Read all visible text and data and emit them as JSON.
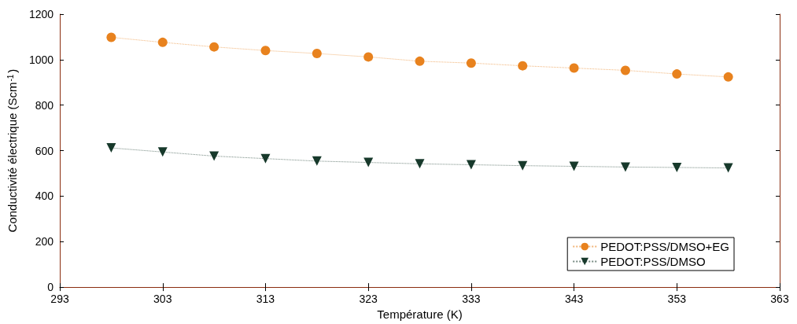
{
  "chart_data": {
    "type": "line",
    "xlabel": "Température (K)",
    "ylabel": "Conductivité électrique (Scm$^{-1}$)",
    "x": [
      298,
      303,
      308,
      313,
      318,
      323,
      328,
      333,
      338,
      343,
      348,
      353,
      358
    ],
    "series": [
      {
        "name": "PEDOT:PSS/DMSO+EG",
        "color": "#e8821e",
        "marker": "circle",
        "values": [
          1098,
          1076,
          1056,
          1040,
          1027,
          1012,
          993,
          985,
          973,
          963,
          953,
          937,
          924
        ]
      },
      {
        "name": "PEDOT:PSS/DMSO",
        "color": "#17392b",
        "marker": "triangle",
        "values": [
          612,
          594,
          576,
          565,
          554,
          548,
          542,
          538,
          534,
          531,
          528,
          526,
          524
        ]
      }
    ],
    "xlim": [
      293,
      363
    ],
    "xticks": [
      293,
      303,
      313,
      323,
      333,
      343,
      353,
      363
    ],
    "ylim": [
      0,
      1200
    ],
    "yticks": [
      0,
      200,
      400,
      600,
      800,
      1000,
      1200
    ],
    "grid": false,
    "legend": "bottom right",
    "line_style": "dotted"
  }
}
